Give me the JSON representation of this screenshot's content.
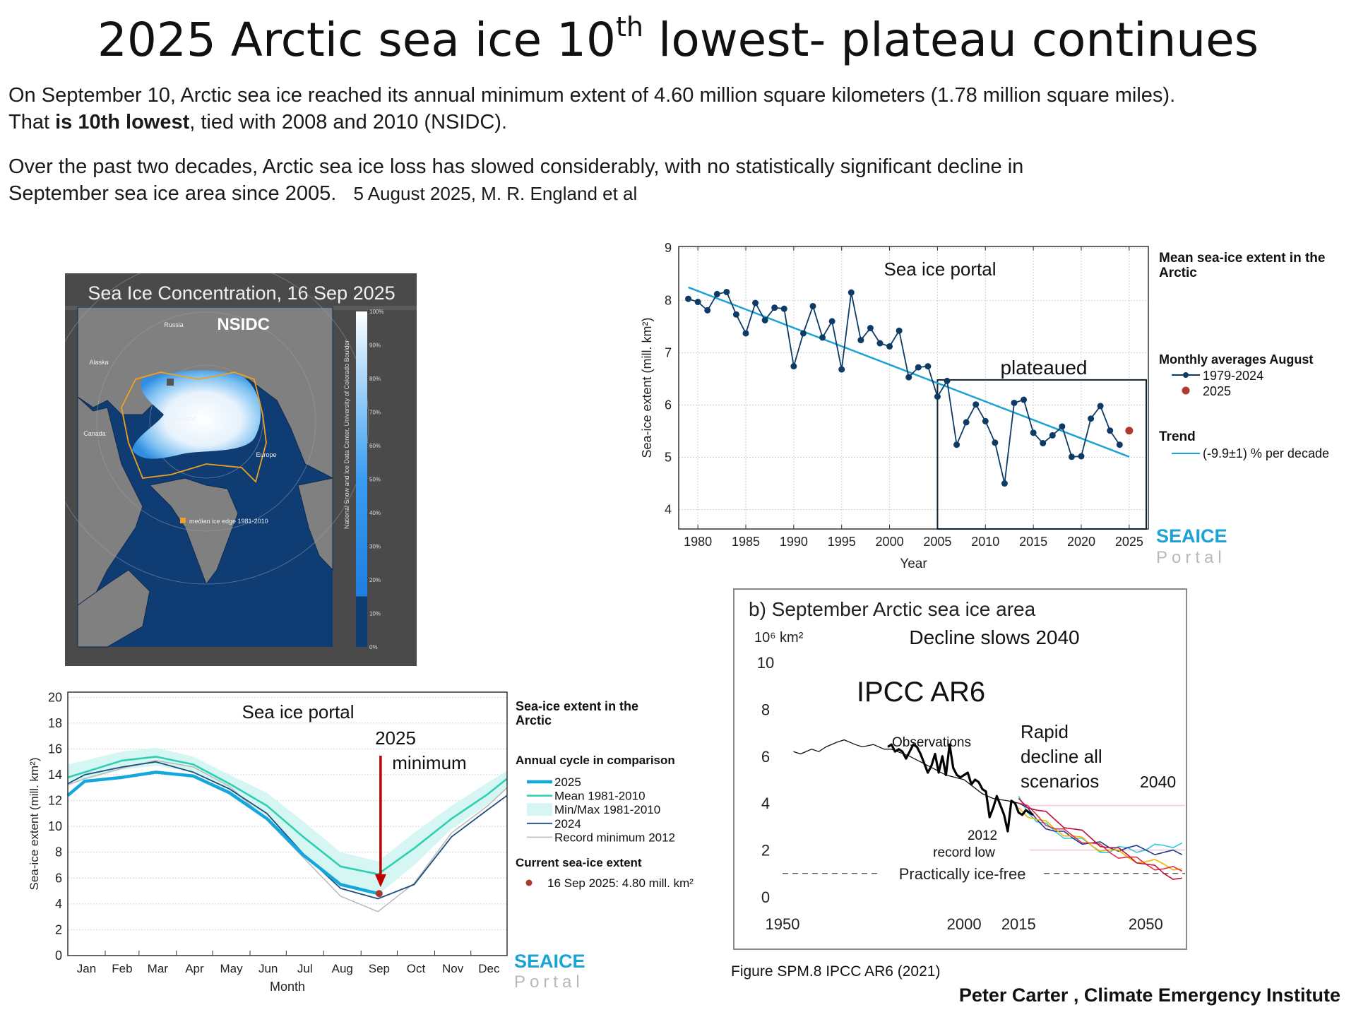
{
  "header": {
    "title_main": "2025 Arctic sea ice 10",
    "title_sup": "th",
    "title_rest": " lowest- plateau continues",
    "para1_line1": "On September 10, Arctic sea ice reached its annual minimum extent of 4.60 million square kilometers (1.78 million square miles).",
    "para1_line2_pre": "That ",
    "para1_line2_bold": "is 10th lowest",
    "para1_line2_post": ", tied with 2008 and 2010 (NSIDC).",
    "para2_line1": "Over the past two decades, Arctic sea ice loss has slowed considerably, with no statistically significant decline in",
    "para2_line2": "September sea ice area since 2005.",
    "para2_citation": "5 August 2025, M. R. England et al"
  },
  "map": {
    "title": "Sea Ice Concentration, 16 Sep 2025",
    "watermark": "NSIDC",
    "labels": [
      "Russia",
      "Alaska",
      "Canada",
      "Greenland",
      "Europe"
    ],
    "legend": "median ice edge 1981-2010",
    "credit": "National Snow and Ice Data Center, University of Colorado Boulder",
    "colorbar_ticks": [
      "0%",
      "10%",
      "20%",
      "30%",
      "40%",
      "50%",
      "60%",
      "70%",
      "80%",
      "90%",
      "100%"
    ],
    "colors": {
      "ocean": "#0f3d73",
      "land": "#808080",
      "edge": "#f0a020",
      "panel": "#4a4a4a"
    }
  },
  "chart_data": [
    {
      "type": "line",
      "annotation_title": "Sea ice portal",
      "annotation_box_label": "plateaued",
      "annotation_box": {
        "x_start": 2005,
        "y_top": 6.48
      },
      "xlabel": "Year",
      "ylabel": "Sea-ice extent (mill. km²)",
      "xlim": [
        1978,
        2027
      ],
      "ylim": [
        3.63,
        9.03
      ],
      "xticks": [
        1980,
        1985,
        1990,
        1995,
        2000,
        2005,
        2010,
        2015,
        2020,
        2025
      ],
      "yticks": [
        4,
        5,
        6,
        7,
        8,
        9
      ],
      "grid": true,
      "legend_position": "right",
      "legend_title": [
        "Mean sea-ice extent in the",
        "Arctic"
      ],
      "legend_group": "Monthly averages August",
      "legend_trend_title": "Trend",
      "logo": {
        "line1": "SEAICE",
        "line2": "Portal"
      },
      "series": [
        {
          "name": "1979-2024",
          "color": "#0d3b66",
          "x": [
            1979,
            1980,
            1981,
            1982,
            1983,
            1984,
            1985,
            1986,
            1987,
            1988,
            1989,
            1990,
            1991,
            1992,
            1993,
            1994,
            1995,
            1996,
            1997,
            1998,
            1999,
            2000,
            2001,
            2002,
            2003,
            2004,
            2005,
            2006,
            2007,
            2008,
            2009,
            2010,
            2011,
            2012,
            2013,
            2014,
            2015,
            2016,
            2017,
            2018,
            2019,
            2020,
            2021,
            2022,
            2023,
            2024
          ],
          "y": [
            8.03,
            7.97,
            7.81,
            8.12,
            8.16,
            7.73,
            7.37,
            7.95,
            7.62,
            7.86,
            7.84,
            6.74,
            7.37,
            7.89,
            7.29,
            7.6,
            6.68,
            8.15,
            7.24,
            7.47,
            7.18,
            7.12,
            7.42,
            6.53,
            6.72,
            6.74,
            6.16,
            6.46,
            5.24,
            5.67,
            6.01,
            5.69,
            5.28,
            4.5,
            6.04,
            6.1,
            5.47,
            5.27,
            5.42,
            5.59,
            5.01,
            5.02,
            5.74,
            5.98,
            5.51,
            5.24
          ]
        },
        {
          "name": "2025",
          "color": "#b03a2e",
          "x": [
            2025
          ],
          "y": [
            5.51
          ]
        },
        {
          "name": "(-9.9±1) % per decade",
          "color": "#1ba3d6",
          "x": [
            1979,
            2025
          ],
          "y": [
            8.25,
            5.01
          ]
        }
      ]
    },
    {
      "type": "line",
      "annotation_title": "Sea ice portal",
      "annotation_arrow": [
        "2025",
        "minimum"
      ],
      "xlabel": "Month",
      "ylabel": "Sea-ice extent (mill. km²)",
      "xlim": [
        1,
        365
      ],
      "ylim": [
        0,
        20.4
      ],
      "yticks": [
        0,
        2,
        4,
        6,
        8,
        10,
        12,
        14,
        16,
        18,
        20
      ],
      "month_labels": [
        "Jan",
        "Feb",
        "Mar",
        "Apr",
        "May",
        "Jun",
        "Jul",
        "Aug",
        "Sep",
        "Oct",
        "Nov",
        "Dec"
      ],
      "grid": true,
      "legend_position": "right",
      "legend_title": [
        "Sea-ice extent in the",
        "Arctic"
      ],
      "legend_group": "Annual cycle in comparison",
      "current_title": "Current sea-ice extent",
      "current_label": "16 Sep 2025:   4.80 mill. km²",
      "current_point": {
        "day": 259,
        "value": 4.8,
        "color": "#a83a32"
      },
      "logo": {
        "line1": "SEAICE",
        "line2": "Portal"
      },
      "days": [
        1,
        15,
        46,
        74,
        105,
        135,
        166,
        196,
        227,
        258,
        288,
        319,
        349,
        365
      ],
      "band": {
        "name": "Min/Max 1981-2010",
        "color": "#d6f6f3",
        "max": [
          14.8,
          15.1,
          15.8,
          16.1,
          15.4,
          14.0,
          12.6,
          10.4,
          8.0,
          7.3,
          9.5,
          11.6,
          13.4,
          14.3
        ],
        "min": [
          13.4,
          13.6,
          14.4,
          14.7,
          14.2,
          12.7,
          10.8,
          8.0,
          5.6,
          4.7,
          7.0,
          9.8,
          11.7,
          13.0
        ]
      },
      "series": [
        {
          "name": "2025",
          "color": "#14a7dd",
          "y": [
            12.4,
            13.5,
            13.8,
            14.2,
            13.9,
            12.6,
            10.6,
            7.8,
            5.5,
            4.8,
            null,
            null,
            null,
            null
          ]
        },
        {
          "name": "Mean 1981-2010",
          "color": "#2fd0b2",
          "y": [
            13.8,
            14.2,
            15.1,
            15.4,
            14.8,
            13.3,
            11.6,
            9.2,
            6.9,
            6.3,
            8.3,
            10.6,
            12.5,
            13.7
          ]
        },
        {
          "name": "2024",
          "color": "#1d4e7e",
          "y": [
            13.3,
            14.0,
            14.6,
            15.0,
            14.2,
            12.9,
            11.0,
            7.9,
            5.2,
            4.4,
            5.5,
            9.2,
            11.3,
            12.4
          ]
        },
        {
          "name": "Record minimum 2012",
          "color": "#b8b8b8",
          "y": [
            13.2,
            13.7,
            14.5,
            15.1,
            14.6,
            13.1,
            10.5,
            7.6,
            4.6,
            3.4,
            5.6,
            9.5,
            11.6,
            13.0
          ]
        }
      ]
    },
    {
      "type": "line",
      "title": "b) September Arctic sea ice area",
      "unit_label": "10⁶ km²",
      "annotations": {
        "decline": "Decline slows 2040",
        "ipcc": "IPCC AR6",
        "observations": "Observations",
        "rapid": [
          "Rapid",
          "decline all",
          "scenarios"
        ],
        "rapid_year": "2040",
        "record_year": "2012",
        "record_label": "record low",
        "ice_free": "Practically ice-free"
      },
      "ice_free_level": 1.0,
      "xticks": [
        1950,
        2000,
        2015,
        2050
      ],
      "yticks": [
        0,
        2,
        4,
        6,
        8,
        10
      ],
      "caption": "Figure SPM.8  IPCC AR6 (2021)",
      "observations_smoothed": {
        "color": "#111111",
        "x": [
          1953,
          1955,
          1958,
          1960,
          1962,
          1965,
          1967,
          1970,
          1972,
          1975,
          1978,
          1980,
          1985,
          1990,
          1995,
          2000,
          2005,
          2008,
          2012,
          2015
        ],
        "y": [
          6.2,
          6.1,
          6.3,
          6.2,
          6.4,
          6.6,
          6.7,
          6.5,
          6.4,
          6.5,
          6.3,
          6.3,
          6.0,
          5.6,
          5.2,
          5.0,
          4.4,
          4.2,
          4.1,
          4.0
        ]
      },
      "observations": {
        "color": "#000000",
        "x": [
          1979,
          1980,
          1981,
          1982,
          1983,
          1984,
          1985,
          1986,
          1987,
          1988,
          1989,
          1990,
          1991,
          1992,
          1993,
          1994,
          1995,
          1996,
          1997,
          1998,
          1999,
          2000,
          2001,
          2002,
          2003,
          2004,
          2005,
          2006,
          2007,
          2008,
          2009,
          2010,
          2011,
          2012,
          2013,
          2014,
          2015,
          2016,
          2017,
          2018,
          2019
        ],
        "y": [
          6.4,
          6.5,
          6.2,
          6.3,
          6.2,
          5.9,
          6.2,
          6.5,
          6.4,
          6.1,
          5.7,
          5.3,
          5.6,
          6.1,
          5.3,
          6.0,
          5.2,
          6.5,
          5.5,
          5.2,
          5.1,
          5.2,
          5.3,
          4.8,
          5.0,
          4.9,
          4.6,
          4.5,
          3.4,
          3.8,
          4.3,
          3.9,
          3.5,
          2.8,
          4.1,
          4.0,
          3.6,
          3.5,
          3.7,
          3.6,
          3.5
        ]
      },
      "scenario_years": [
        2015,
        2020,
        2025,
        2030,
        2035,
        2040,
        2045,
        2050,
        2055,
        2060
      ],
      "scenarios": [
        {
          "color": "#2ec8e0",
          "y": [
            4.3,
            3.2,
            2.8,
            2.5,
            2.2,
            1.9,
            2.1,
            2.0,
            2.2,
            2.3
          ]
        },
        {
          "color": "#1f3c88",
          "y": [
            4.0,
            3.3,
            2.8,
            2.5,
            2.3,
            2.1,
            2.1,
            2.0,
            1.9,
            1.8
          ]
        },
        {
          "color": "#f4b400",
          "y": [
            3.8,
            3.3,
            2.9,
            2.6,
            2.2,
            2.0,
            1.7,
            1.5,
            1.4,
            1.2
          ]
        },
        {
          "color": "#e0304a",
          "y": [
            4.0,
            3.5,
            2.9,
            2.6,
            2.3,
            1.9,
            1.7,
            1.4,
            1.2,
            1.1
          ]
        },
        {
          "color": "#c0103a",
          "y": [
            4.2,
            3.7,
            3.3,
            2.9,
            2.5,
            2.1,
            1.8,
            1.4,
            1.0,
            0.8
          ]
        }
      ]
    }
  ],
  "footer": {
    "signature": "Peter Carter , Climate Emergency Institute"
  }
}
